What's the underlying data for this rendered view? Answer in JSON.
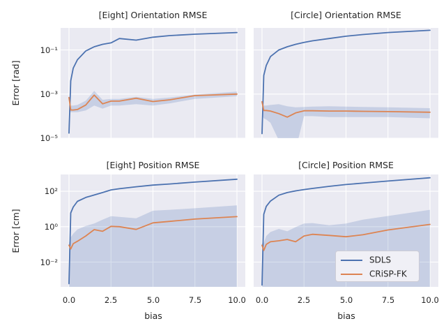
{
  "figure": {
    "background": "#ffffff",
    "axes_background": "#eaeaf2",
    "grid_color": "#ffffff",
    "text_color": "#262626",
    "band_color": "rgba(76,114,176,0.22)"
  },
  "legend": {
    "items": [
      {
        "label": "SDLS",
        "color": "#4c72b0"
      },
      {
        "label": "CRiSP-FK",
        "color": "#dd8452"
      }
    ]
  },
  "chart_data": [
    {
      "id": "eight-orientation",
      "type": "line",
      "title": "[Eight] Orientation RMSE",
      "xlabel": "",
      "ylabel": "Error [rad]",
      "xlim": [
        -0.5,
        10.5
      ],
      "ylim_exp": [
        -5,
        0
      ],
      "grid": true,
      "xticks": {
        "values": [
          0,
          2.5,
          5,
          7.5,
          10
        ],
        "labels": []
      },
      "yticks": {
        "exps": [
          -5,
          -3,
          -1
        ],
        "labels": [
          "10⁻⁵",
          "10⁻³",
          "10⁻¹"
        ]
      },
      "x": [
        0,
        0.1,
        0.25,
        0.5,
        1,
        1.5,
        2,
        2.5,
        3,
        4,
        5,
        6,
        7.5,
        10
      ],
      "series": [
        {
          "name": "SDLS",
          "color": "#4c72b0",
          "y": [
            1.7e-05,
            0.004,
            0.015,
            0.036,
            0.09,
            0.14,
            0.18,
            0.21,
            0.33,
            0.28,
            0.38,
            0.45,
            0.52,
            0.62
          ]
        },
        {
          "name": "CRiSP-FK",
          "color": "#dd8452",
          "y": [
            0.0007,
            0.00019,
            0.00019,
            0.0002,
            0.00032,
            0.0009,
            0.00036,
            0.00048,
            0.00048,
            0.00065,
            0.00046,
            0.00055,
            0.00085,
            0.001
          ],
          "band": {
            "lo": [
              0.00017,
              0.00015,
              0.00015,
              0.00015,
              0.00018,
              0.0003,
              0.00022,
              0.0003,
              0.0003,
              0.00035,
              0.0003,
              0.00038,
              0.0006,
              0.0008
            ],
            "hi": [
              0.0007,
              0.0003,
              0.0003,
              0.00032,
              0.0005,
              0.0014,
              0.00055,
              0.0006,
              0.0006,
              0.00075,
              0.0006,
              0.0007,
              0.00095,
              0.0013
            ]
          }
        }
      ]
    },
    {
      "id": "circle-orientation",
      "type": "line",
      "title": "[Circle] Orientation RMSE",
      "xlabel": "",
      "ylabel": "",
      "xlim": [
        -0.5,
        10.5
      ],
      "ylim_exp": [
        -5,
        0
      ],
      "grid": true,
      "xticks": {
        "values": [
          0,
          2.5,
          5,
          7.5,
          10
        ],
        "labels": []
      },
      "yticks": {
        "exps": [
          -5,
          -3,
          -1
        ],
        "labels": []
      },
      "x": [
        0,
        0.1,
        0.25,
        0.5,
        1,
        1.5,
        2,
        2.5,
        3,
        4,
        5,
        6,
        7.5,
        10
      ],
      "series": [
        {
          "name": "SDLS",
          "color": "#4c72b0",
          "y": [
            1.6e-05,
            0.007,
            0.02,
            0.05,
            0.1,
            0.14,
            0.18,
            0.22,
            0.26,
            0.33,
            0.42,
            0.5,
            0.62,
            0.78
          ]
        },
        {
          "name": "CRiSP-FK",
          "color": "#dd8452",
          "y": [
            0.00045,
            0.00018,
            0.00018,
            0.00017,
            0.00013,
            9e-05,
            0.00014,
            0.000175,
            0.000175,
            0.00017,
            0.00017,
            0.000165,
            0.00016,
            0.00015
          ],
          "band": {
            "lo": [
              0.00012,
              8e-05,
              7e-05,
              5e-05,
              8e-06,
              1e-06,
              3e-06,
              0.0001,
              0.0001,
              9e-05,
              9e-05,
              9e-05,
              9e-05,
              8e-05
            ],
            "hi": [
              0.0005,
              0.0003,
              0.0003,
              0.00032,
              0.00035,
              0.00028,
              0.00025,
              0.00026,
              0.00027,
              0.00028,
              0.00027,
              0.00026,
              0.00025,
              0.00023
            ]
          }
        }
      ]
    },
    {
      "id": "eight-position",
      "type": "line",
      "title": "[Eight] Position RMSE",
      "xlabel": "bias",
      "ylabel": "Error [cm]",
      "xlim": [
        -0.5,
        10.5
      ],
      "ylim_exp": [
        -3.4,
        2.95
      ],
      "grid": true,
      "xticks": {
        "values": [
          0,
          2.5,
          5,
          7.5,
          10
        ],
        "labels": [
          "0.0",
          "2.5",
          "5.0",
          "7.5",
          "10.0"
        ]
      },
      "yticks": {
        "exps": [
          -2,
          0,
          2
        ],
        "labels": [
          "10⁻²",
          "10⁰",
          "10²"
        ]
      },
      "x": [
        0,
        0.1,
        0.25,
        0.5,
        1,
        1.5,
        2,
        2.5,
        3,
        4,
        5,
        6,
        7.5,
        10
      ],
      "series": [
        {
          "name": "SDLS",
          "color": "#4c72b0",
          "y": [
            0.0006,
            6,
            13,
            27,
            45,
            62,
            85,
            120,
            140,
            180,
            225,
            260,
            330,
            480
          ]
        },
        {
          "name": "CRiSP-FK",
          "color": "#dd8452",
          "y": [
            0.09,
            0.055,
            0.11,
            0.15,
            0.3,
            0.68,
            0.55,
            1.05,
            1.0,
            0.7,
            1.65,
            2.0,
            2.7,
            3.7
          ],
          "band": {
            "lo": [
              0.0002,
              0.0002,
              0.0002,
              0.0002,
              0.0002,
              0.0002,
              0.0002,
              0.0002,
              0.0002,
              0.0002,
              0.0002,
              0.0002,
              0.0002,
              0.0002
            ],
            "hi": [
              0.12,
              0.25,
              0.4,
              0.7,
              1.1,
              1.5,
              2.5,
              3.9,
              3.6,
              3.0,
              8.0,
              9.0,
              11,
              16
            ]
          }
        }
      ]
    },
    {
      "id": "circle-position",
      "type": "line",
      "title": "[Circle] Position RMSE",
      "xlabel": "bias",
      "ylabel": "",
      "xlim": [
        -0.5,
        10.5
      ],
      "ylim_exp": [
        -3.4,
        2.95
      ],
      "grid": true,
      "xticks": {
        "values": [
          0,
          2.5,
          5,
          7.5,
          10
        ],
        "labels": [
          "0.0",
          "2.5",
          "5.0",
          "7.5",
          "10.0"
        ]
      },
      "yticks": {
        "exps": [
          -2,
          0,
          2
        ],
        "labels": []
      },
      "x": [
        0,
        0.1,
        0.25,
        0.5,
        1,
        1.5,
        2,
        2.5,
        3,
        4,
        5,
        6,
        7.5,
        10
      ],
      "series": [
        {
          "name": "SDLS",
          "color": "#4c72b0",
          "y": [
            0.0005,
            5,
            14,
            28,
            60,
            85,
            105,
            125,
            145,
            190,
            240,
            290,
            380,
            580
          ]
        },
        {
          "name": "CRiSP-FK",
          "color": "#dd8452",
          "y": [
            0.09,
            0.045,
            0.1,
            0.14,
            0.16,
            0.19,
            0.14,
            0.3,
            0.37,
            0.32,
            0.27,
            0.35,
            0.65,
            1.35
          ],
          "band": {
            "lo": [
              0.0002,
              0.0002,
              0.0002,
              0.0002,
              0.0002,
              0.0002,
              0.0002,
              0.0002,
              0.0002,
              0.0002,
              0.0002,
              0.0002,
              0.0002,
              0.0002
            ],
            "hi": [
              0.12,
              0.12,
              0.3,
              0.5,
              0.75,
              0.55,
              0.95,
              1.5,
              1.6,
              1.2,
              1.5,
              2.5,
              4.0,
              9.0
            ]
          }
        }
      ]
    }
  ]
}
